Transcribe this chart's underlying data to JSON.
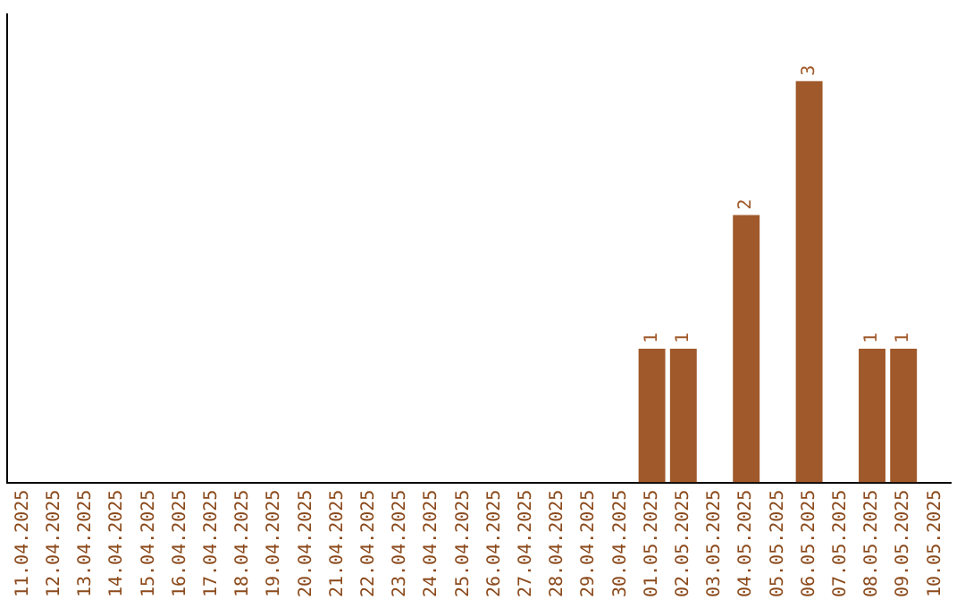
{
  "chart_data": {
    "type": "bar",
    "categories": [
      "11.04.2025",
      "12.04.2025",
      "13.04.2025",
      "14.04.2025",
      "15.04.2025",
      "16.04.2025",
      "17.04.2025",
      "18.04.2025",
      "19.04.2025",
      "20.04.2025",
      "21.04.2025",
      "22.04.2025",
      "23.04.2025",
      "24.04.2025",
      "25.04.2025",
      "26.04.2025",
      "27.04.2025",
      "28.04.2025",
      "29.04.2025",
      "30.04.2025",
      "01.05.2025",
      "02.05.2025",
      "03.05.2025",
      "04.05.2025",
      "05.05.2025",
      "06.05.2025",
      "07.05.2025",
      "08.05.2025",
      "09.05.2025",
      "10.05.2025"
    ],
    "values": [
      null,
      null,
      null,
      null,
      null,
      null,
      null,
      null,
      null,
      null,
      null,
      null,
      null,
      null,
      null,
      null,
      null,
      null,
      null,
      null,
      1,
      1,
      null,
      2,
      null,
      3,
      null,
      1,
      1,
      null
    ],
    "data_labels": true,
    "color": "#a0592a",
    "tick_labels": "x"
  }
}
